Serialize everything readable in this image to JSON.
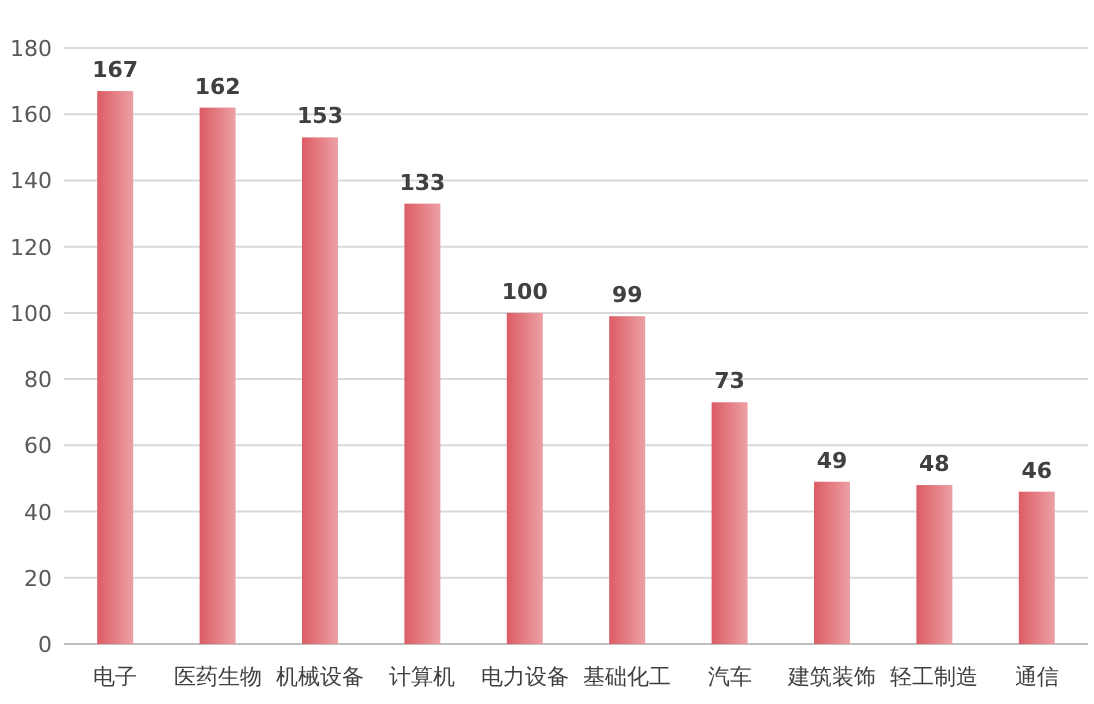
{
  "chart_data": {
    "type": "bar",
    "categories": [
      "电子",
      "医药生物",
      "机械设备",
      "计算机",
      "电力设备",
      "基础化工",
      "汽车",
      "建筑装饰",
      "轻工制造",
      "通信"
    ],
    "values": [
      167,
      162,
      153,
      133,
      100,
      99,
      73,
      49,
      48,
      46
    ],
    "color": "#dc5c64",
    "ylim": [
      0,
      180
    ],
    "yticks": [
      0,
      20,
      40,
      60,
      80,
      100,
      120,
      140,
      160,
      180
    ],
    "grid": "y",
    "data_labels": true
  }
}
